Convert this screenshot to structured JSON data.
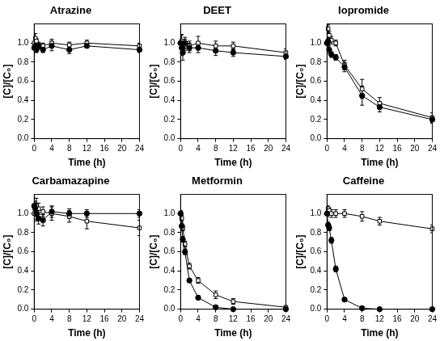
{
  "chart_data": [
    {
      "type": "line",
      "title": "Atrazine",
      "x_label": "Time (h)",
      "y_label": "[C]/[C₀]",
      "x": [
        0,
        0.25,
        0.5,
        1,
        2,
        4,
        8,
        12,
        24
      ],
      "series": [
        {
          "color": "#000000",
          "marker": "circle",
          "line_style": "solid",
          "values": [
            0.95,
            0.97,
            0.93,
            0.97,
            0.93,
            0.97,
            0.93,
            0.97,
            0.93
          ],
          "errors": [
            0.04,
            0.04,
            0.03,
            0.03,
            0.03,
            0.05,
            0.04,
            0.02,
            0.03
          ]
        },
        {
          "color": "#000000",
          "marker": "open_square",
          "line_style": "solid",
          "values": [
            1.0,
            1.05,
            1.02,
            0.98,
            0.97,
            1.0,
            0.98,
            1.0,
            0.97
          ],
          "errors": [
            0.04,
            0.05,
            0.03,
            0.03,
            0.03,
            0.04,
            0.03,
            0.03,
            0.03
          ]
        }
      ],
      "xlim": [
        0,
        24
      ],
      "xticks": [
        0,
        4,
        8,
        12,
        16,
        20,
        24
      ],
      "ylim": [
        0,
        1.2
      ],
      "yticks": [
        {
          "value": 0,
          "label": "0.0"
        },
        {
          "value": 0.2,
          "label": "0.2"
        },
        {
          "value": 0.4,
          "label": "0.4"
        },
        {
          "value": 0.6,
          "label": "0.6"
        },
        {
          "value": 0.8,
          "label": "0.8"
        },
        {
          "value": 1,
          "label": "1.0"
        }
      ],
      "grid": false
    },
    {
      "type": "line",
      "title": "DEET",
      "x_label": "Time (h)",
      "y_label": "[C]/[C₀]",
      "x": [
        0,
        0.25,
        0.5,
        1,
        2,
        4,
        8,
        12,
        24
      ],
      "series": [
        {
          "color": "#000000",
          "marker": "circle",
          "line_style": "solid",
          "values": [
            1.0,
            0.95,
            0.9,
            1.0,
            0.95,
            0.95,
            0.92,
            0.9,
            0.86
          ],
          "errors": [
            0.08,
            0.08,
            0.08,
            0.06,
            0.05,
            0.05,
            0.05,
            0.04,
            0.03
          ]
        },
        {
          "color": "#000000",
          "marker": "open_square",
          "line_style": "solid",
          "values": [
            1.0,
            1.02,
            0.95,
            0.98,
            0.97,
            1.0,
            0.97,
            0.97,
            0.9
          ],
          "errors": [
            0.08,
            0.07,
            0.06,
            0.06,
            0.05,
            0.07,
            0.05,
            0.04,
            0.04
          ]
        }
      ],
      "xlim": [
        0,
        24
      ],
      "xticks": [
        0,
        4,
        8,
        12,
        16,
        20,
        24
      ],
      "ylim": [
        0,
        1.2
      ],
      "yticks": [
        {
          "value": 0,
          "label": "0.0"
        },
        {
          "value": 0.2,
          "label": "0.2"
        },
        {
          "value": 0.4,
          "label": "0.4"
        },
        {
          "value": 0.6,
          "label": "0.6"
        },
        {
          "value": 0.8,
          "label": "0.8"
        },
        {
          "value": 1,
          "label": "1.0"
        }
      ],
      "grid": false
    },
    {
      "type": "line",
      "title": "Iopromide",
      "x_label": "Time (h)",
      "y_label": "[C]/[C₀]",
      "x": [
        0,
        0.25,
        0.5,
        1,
        2,
        4,
        8,
        12,
        24
      ],
      "series": [
        {
          "color": "#000000",
          "marker": "circle",
          "line_style": "solid",
          "values": [
            1.0,
            1.02,
            0.93,
            0.88,
            0.85,
            0.75,
            0.45,
            0.33,
            0.2
          ],
          "errors": [
            0.04,
            0.04,
            0.04,
            0.03,
            0.03,
            0.05,
            0.1,
            0.05,
            0.04
          ]
        },
        {
          "color": "#000000",
          "marker": "open_square",
          "line_style": "solid",
          "values": [
            1.0,
            1.15,
            1.08,
            1.03,
            1.0,
            0.77,
            0.52,
            0.37,
            0.22
          ],
          "errors": [
            0.04,
            0.04,
            0.04,
            0.04,
            0.03,
            0.05,
            0.1,
            0.06,
            0.05
          ]
        }
      ],
      "xlim": [
        0,
        24
      ],
      "xticks": [
        0,
        4,
        8,
        12,
        16,
        20,
        24
      ],
      "ylim": [
        0,
        1.2
      ],
      "yticks": [
        {
          "value": 0,
          "label": "0.0"
        },
        {
          "value": 0.2,
          "label": "0.2"
        },
        {
          "value": 0.4,
          "label": "0.4"
        },
        {
          "value": 0.6,
          "label": "0.6"
        },
        {
          "value": 0.8,
          "label": "0.8"
        },
        {
          "value": 1,
          "label": "1.0"
        }
      ],
      "grid": false
    },
    {
      "type": "line",
      "title": "Carbamazapine",
      "x_label": "Time (h)",
      "y_label": "[C]/[C₀]",
      "x": [
        0,
        0.25,
        0.5,
        1,
        2,
        4,
        8,
        12,
        24
      ],
      "series": [
        {
          "color": "#000000",
          "marker": "circle",
          "line_style": "solid",
          "values": [
            1.08,
            1.05,
            1.0,
            0.95,
            0.93,
            1.02,
            1.0,
            1.0,
            1.0
          ],
          "errors": [
            0.08,
            0.06,
            0.08,
            0.06,
            0.06,
            0.06,
            0.05,
            0.04,
            0.04
          ]
        },
        {
          "color": "#000000",
          "marker": "open_square",
          "line_style": "solid",
          "values": [
            1.0,
            1.05,
            1.08,
            1.05,
            1.02,
            1.0,
            0.97,
            0.92,
            0.85
          ],
          "errors": [
            0.06,
            0.08,
            0.08,
            0.06,
            0.05,
            0.07,
            0.06,
            0.08,
            0.08
          ]
        }
      ],
      "xlim": [
        0,
        24
      ],
      "xticks": [
        0,
        4,
        8,
        12,
        16,
        20,
        24
      ],
      "ylim": [
        0,
        1.2
      ],
      "yticks": [
        {
          "value": 0,
          "label": "0.0"
        },
        {
          "value": 0.2,
          "label": "0.2"
        },
        {
          "value": 0.4,
          "label": "0.4"
        },
        {
          "value": 0.6,
          "label": "0.6"
        },
        {
          "value": 0.8,
          "label": "0.8"
        },
        {
          "value": 1,
          "label": "1.0"
        }
      ],
      "grid": false
    },
    {
      "type": "line",
      "title": "Metformin",
      "x_label": "Time (h)",
      "y_label": "[C]/[C₀]",
      "x": [
        0,
        0.25,
        0.5,
        1,
        2,
        4,
        8,
        12,
        24
      ],
      "series": [
        {
          "color": "#000000",
          "marker": "circle",
          "line_style": "solid",
          "values": [
            1.0,
            0.87,
            0.73,
            0.6,
            0.3,
            0.12,
            0.02,
            0.0,
            0.0
          ],
          "errors": [
            0.03,
            0.03,
            0.03,
            0.03,
            0.02,
            0.02,
            0.01,
            0.01,
            0.01
          ]
        },
        {
          "color": "#000000",
          "marker": "open_square",
          "line_style": "solid",
          "values": [
            1.0,
            0.95,
            0.85,
            0.68,
            0.45,
            0.3,
            0.15,
            0.08,
            0.02
          ],
          "errors": [
            0.03,
            0.03,
            0.03,
            0.03,
            0.03,
            0.03,
            0.04,
            0.03,
            0.01
          ]
        }
      ],
      "xlim": [
        0,
        24
      ],
      "xticks": [
        0,
        4,
        8,
        12,
        16,
        20,
        24
      ],
      "ylim": [
        0,
        1.2
      ],
      "yticks": [
        {
          "value": 0,
          "label": "0.0"
        },
        {
          "value": 0.2,
          "label": "0.2"
        },
        {
          "value": 0.4,
          "label": "0.4"
        },
        {
          "value": 0.6,
          "label": "0.6"
        },
        {
          "value": 0.8,
          "label": "0.8"
        },
        {
          "value": 1,
          "label": "1.0"
        }
      ],
      "grid": false
    },
    {
      "type": "line",
      "title": "Caffeine",
      "x_label": "Time (h)",
      "y_label": "[C]/[C₀]",
      "x": [
        0,
        0.25,
        0.5,
        1,
        2,
        4,
        8,
        12,
        24
      ],
      "series": [
        {
          "color": "#000000",
          "marker": "circle",
          "line_style": "solid",
          "values": [
            1.0,
            0.88,
            0.85,
            0.72,
            0.42,
            0.1,
            0.01,
            0.0,
            0.0
          ],
          "errors": [
            0.03,
            0.03,
            0.03,
            0.03,
            0.03,
            0.02,
            0.01,
            0.01,
            0.01
          ]
        },
        {
          "color": "#000000",
          "marker": "open_square",
          "line_style": "solid",
          "values": [
            1.0,
            1.05,
            1.03,
            1.0,
            1.0,
            1.0,
            0.97,
            0.92,
            0.84
          ],
          "errors": [
            0.03,
            0.03,
            0.03,
            0.04,
            0.04,
            0.04,
            0.05,
            0.04,
            0.04
          ]
        }
      ],
      "xlim": [
        0,
        24
      ],
      "xticks": [
        0,
        4,
        8,
        12,
        16,
        20,
        24
      ],
      "ylim": [
        0,
        1.2
      ],
      "yticks": [
        {
          "value": 0,
          "label": "0.0"
        },
        {
          "value": 0.2,
          "label": "0.2"
        },
        {
          "value": 0.4,
          "label": "0.4"
        },
        {
          "value": 0.6,
          "label": "0.6"
        },
        {
          "value": 0.8,
          "label": "0.8"
        },
        {
          "value": 1,
          "label": "1.0"
        }
      ],
      "grid": false
    }
  ]
}
